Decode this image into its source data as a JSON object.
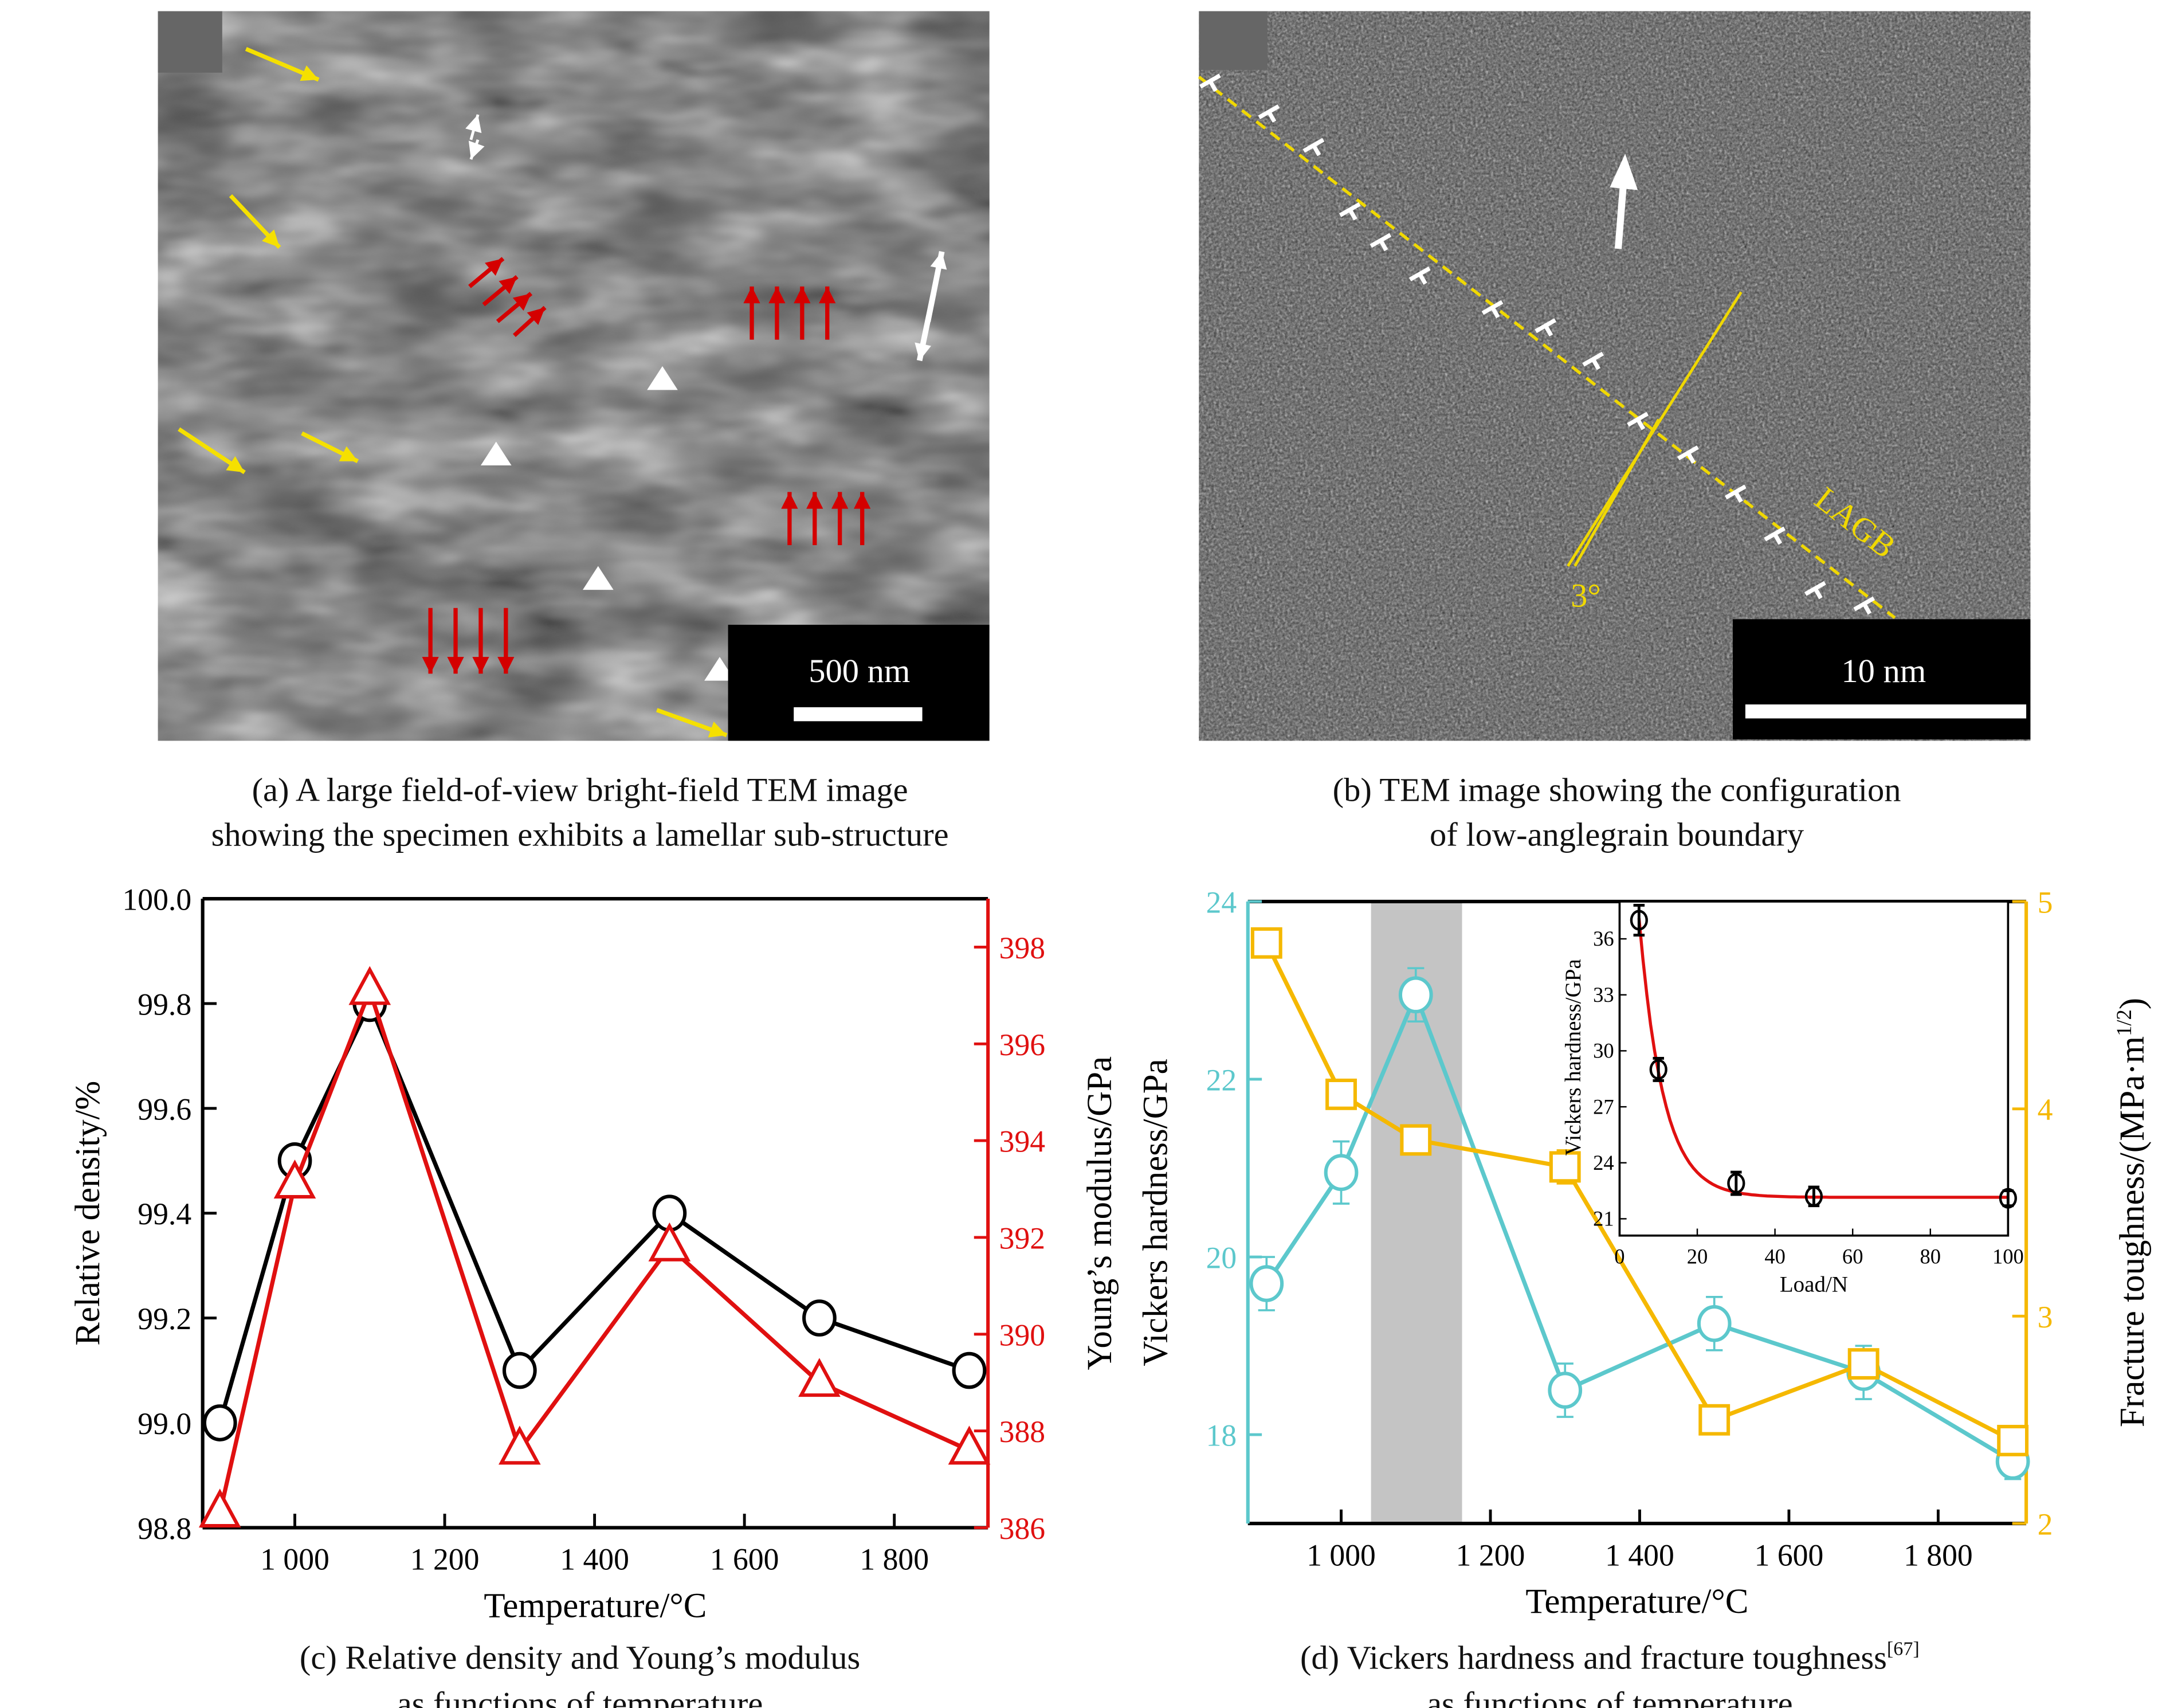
{
  "panel_a": {
    "scale_bar_label": "500 nm",
    "caption_line1": "(a) A large field-of-view bright-field TEM image",
    "caption_line2": "showing the specimen exhibits a lamellar sub-structure",
    "arrow_colors": {
      "yellow": "#f5e000",
      "red": "#d40000",
      "white": "#ffffff"
    }
  },
  "panel_b": {
    "scale_bar_label": "10 nm",
    "boundary_label": "LAGB",
    "angle_label": "3°",
    "caption_line1": "(b) TEM image showing the configuration",
    "caption_line2": "of low-anglegrain boundary",
    "annotation_color": "#f0d800"
  },
  "panel_c": {
    "caption_line1": "(c) Relative density and Young’s modulus",
    "caption_line2": "as functions of temperature"
  },
  "panel_d": {
    "caption_line1": "(d) Vickers hardness and fracture toughness",
    "caption_ref": "[67]",
    "caption_line2": "as functions of temperature"
  },
  "chart_data": [
    {
      "id": "c",
      "type": "line",
      "xlabel": "Temperature/°C",
      "xlim": [
        877,
        1925
      ],
      "xticks": [
        1000,
        1200,
        1400,
        1600,
        1800
      ],
      "xtick_labels": [
        "1 000",
        "1 200",
        "1 400",
        "1 600",
        "1 800"
      ],
      "x": [
        900,
        1000,
        1100,
        1300,
        1500,
        1700,
        1900
      ],
      "y_left": {
        "label": "Relative density/%",
        "lim": [
          98.8,
          100.0
        ],
        "ticks": [
          "98.8",
          "99.0",
          "99.2",
          "99.4",
          "99.6",
          "99.8",
          "100.0"
        ],
        "color": "#000000"
      },
      "y_right": {
        "label": "Young’s modulus/GPa",
        "lim": [
          386,
          399
        ],
        "ticks": [
          "386",
          "388",
          "390",
          "392",
          "394",
          "396",
          "398"
        ],
        "color": "#e01010"
      },
      "series": [
        {
          "axis": "left",
          "marker": "circle",
          "color": "#000000",
          "values": [
            99.0,
            99.5,
            99.8,
            99.1,
            99.4,
            99.2,
            99.1
          ]
        },
        {
          "axis": "right",
          "marker": "triangle",
          "color": "#e01010",
          "values": [
            386.3,
            393.1,
            397.1,
            387.6,
            391.8,
            389.0,
            387.6
          ]
        }
      ],
      "grid": false
    },
    {
      "id": "d",
      "type": "line",
      "xlabel": "Temperature/°C",
      "xlim": [
        875,
        1918
      ],
      "xticks": [
        1000,
        1200,
        1400,
        1600,
        1800
      ],
      "xtick_labels": [
        "1 000",
        "1 200",
        "1 400",
        "1 600",
        "1 800"
      ],
      "x": [
        900,
        1000,
        1100,
        1300,
        1500,
        1700,
        1900
      ],
      "shaded_range": [
        1040,
        1162
      ],
      "y_left": {
        "label": "Vickers hardness/GPa",
        "lim": [
          17,
          24
        ],
        "ticks": [
          "18",
          "20",
          "22",
          "24"
        ],
        "color": "#5cc8cc"
      },
      "y_right": {
        "label": "Fracture toughness/(MPa·m",
        "label_sup": "1/2",
        "label_end": ")",
        "lim": [
          2,
          5
        ],
        "ticks": [
          "2",
          "3",
          "4",
          "5"
        ],
        "color": "#f5b800"
      },
      "series": [
        {
          "axis": "left",
          "marker": "circle",
          "color": "#5cc8cc",
          "values": [
            19.7,
            20.95,
            22.95,
            18.5,
            19.25,
            18.7,
            17.7
          ],
          "errors": [
            0.3,
            0.35,
            0.3,
            0.3,
            0.3,
            0.3,
            0.2
          ]
        },
        {
          "axis": "right",
          "marker": "square",
          "color": "#f5b800",
          "values": [
            4.8,
            4.07,
            3.85,
            3.72,
            2.5,
            2.77,
            2.4
          ],
          "errors": [
            0.06,
            0.05,
            0.03,
            0.08,
            0.07,
            0.06,
            0.05
          ]
        }
      ],
      "grid": false
    },
    {
      "id": "d-inset",
      "type": "scatter",
      "xlabel": "Load/N",
      "ylabel": "Vickers hardness/GPa",
      "xlim": [
        0,
        100
      ],
      "ylim": [
        20.1,
        38
      ],
      "xticks": [
        "0",
        "20",
        "40",
        "60",
        "80",
        "100"
      ],
      "yticks": [
        "21",
        "24",
        "27",
        "30",
        "33",
        "36"
      ],
      "x": [
        5,
        10,
        30,
        50,
        100
      ],
      "values": [
        37.0,
        29.0,
        22.9,
        22.2,
        22.1
      ],
      "errors": [
        0.8,
        0.6,
        0.6,
        0.5,
        0.4
      ],
      "fit_color": "#e01010",
      "fit": "exponential decay"
    }
  ]
}
